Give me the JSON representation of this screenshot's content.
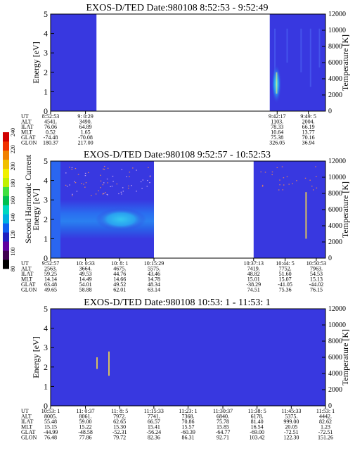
{
  "colors": {
    "background_fill": "#3838e0",
    "panel_gap": "#ffffff",
    "enhanced": "#2a70f0",
    "bright": "#30c8f0",
    "hot": "#f0f070",
    "spike": "#d8c060"
  },
  "colorbar": {
    "label": "Second Harmonic Current",
    "ticks": [
      "80",
      "100",
      "120",
      "140",
      "160",
      "180",
      "200",
      "220",
      "240"
    ],
    "colors": [
      "#000000",
      "#400050",
      "#6000a0",
      "#2020c0",
      "#1060f0",
      "#00b0e0",
      "#00d8c0",
      "#00c050",
      "#40e040",
      "#c0f000",
      "#f0f000",
      "#f0c000",
      "#f08000",
      "#f03000",
      "#d00000"
    ]
  },
  "chart_data": [
    {
      "type": "heatmap",
      "title": "EXOS-D/TED   Date:980108  8:52:53 - 9:52:49",
      "ylabel": "Energy [eV]",
      "y2label": "Temperature [K]",
      "ylim": [
        0,
        5
      ],
      "y2lim": [
        0,
        12000
      ],
      "yticks": [
        "0",
        "1",
        "2",
        "3",
        "4",
        "5"
      ],
      "y2ticks": [
        "0",
        "2000",
        "4000",
        "6000",
        "8000",
        "10000",
        "12000"
      ],
      "time_range": [
        "8:52:53",
        "9:52:49"
      ],
      "data_intervals": [
        [
          "8:52:53",
          "9:02:53"
        ],
        [
          "9:40:40",
          "9:52:49"
        ]
      ],
      "table": {
        "row_labels": [
          "UT",
          "ALT",
          "ILAT",
          "MLT",
          "GLAT",
          "GLON"
        ],
        "columns": [
          {
            "values": [
              "8:52:53",
              "4541.",
              "76.06",
              "0.52",
              "-74.48",
              "180.37"
            ]
          },
          {
            "values": [
              "9: 0:29",
              "3490.",
              "64.89",
              "1.65",
              "-70.08",
              "217.00"
            ]
          },
          {
            "values": [
              "9:42:17",
              "1103.",
              "78.33",
              "10.64",
              "75.38",
              "326.05"
            ]
          },
          {
            "values": [
              "9:49: 5",
              "2004.",
              "66.19",
              "13.77",
              "70.16",
              "36.94"
            ]
          }
        ]
      }
    },
    {
      "type": "heatmap",
      "title": "EXOS-D/TED   Date:980108  9:52:57 - 10:52:53",
      "ylabel": "Energy [eV]",
      "y2label": "Temperature [K]",
      "ylim": [
        0,
        5
      ],
      "y2lim": [
        0,
        12000
      ],
      "yticks": [
        "0",
        "1",
        "2",
        "3",
        "4",
        "5"
      ],
      "y2ticks": [
        "0",
        "2000",
        "4000",
        "6000",
        "8000",
        "10000",
        "12000"
      ],
      "time_range": [
        "9:52:57",
        "10:52:53"
      ],
      "data_intervals": [
        [
          "9:52:57",
          "10:15:29"
        ],
        [
          "10:37:13",
          "10:52:53"
        ]
      ],
      "table": {
        "row_labels": [
          "UT",
          "ALT",
          "ILAT",
          "MLT",
          "GLAT",
          "GLON"
        ],
        "columns": [
          {
            "values": [
              "9:52:57",
              "2563.",
              "59.25",
              "14.14",
              "63.48",
              "49.65"
            ]
          },
          {
            "values": [
              "10: 0:33",
              "3664.",
              "49.53",
              "14.49",
              "54.01",
              "58.88"
            ]
          },
          {
            "values": [
              "10: 8: 1",
              "4675.",
              "44.76",
              "14.66",
              "49.52",
              "62.01"
            ]
          },
          {
            "values": [
              "10:15:29",
              "5575.",
              "43.46",
              "14.78",
              "48.34",
              "63.14"
            ]
          },
          {
            "values": [
              "10:37:13",
              "7419.",
              "48.82",
              "15.01",
              "-38.29",
              "74.51"
            ]
          },
          {
            "values": [
              "10:44: 5",
              "7752.",
              "51.60",
              "15.07",
              "-41.05",
              "75.36"
            ]
          },
          {
            "values": [
              "10:50:53",
              "7963.",
              "54.53",
              "15.13",
              "-44.02",
              "76.15"
            ]
          }
        ]
      }
    },
    {
      "type": "heatmap",
      "title": "EXOS-D/TED   Date:980108  10:53: 1 - 11:53: 1",
      "ylabel": "Energy [eV]",
      "y2label": "Temperature [K]",
      "ylim": [
        0,
        5
      ],
      "y2lim": [
        0,
        12000
      ],
      "yticks": [
        "0",
        "1",
        "2",
        "3",
        "4",
        "5"
      ],
      "y2ticks": [
        "0",
        "2000",
        "4000",
        "6000",
        "8000",
        "10000",
        "12000"
      ],
      "time_range": [
        "10:53: 1",
        "11:53: 1"
      ],
      "data_intervals": [
        [
          "10:53: 1",
          "11:53: 1"
        ]
      ],
      "table": {
        "row_labels": [
          "UT",
          "ALT",
          "ILAT",
          "MLT",
          "GLAT",
          "GLON"
        ],
        "columns": [
          {
            "values": [
              "10:53: 1",
              "8005.",
              "55.48",
              "15.15",
              "-44.99",
              "76.48"
            ]
          },
          {
            "values": [
              "11: 0:37",
              "8061.",
              "59.00",
              "15.22",
              "-48.58",
              "77.86"
            ]
          },
          {
            "values": [
              "11: 8: 5",
              "7972.",
              "62.65",
              "15.30",
              "-52.31",
              "79.72"
            ]
          },
          {
            "values": [
              "11:15:33",
              "7741.",
              "66.57",
              "15.41",
              "-56.24",
              "82.36"
            ]
          },
          {
            "values": [
              "11:23: 1",
              "7368.",
              "70.86",
              "15.57",
              "-60.39",
              "86.31"
            ]
          },
          {
            "values": [
              "11:30:37",
              "6840.",
              "75.78",
              "15.85",
              "-64.77",
              "92.71"
            ]
          },
          {
            "values": [
              "11:38: 5",
              "6178.",
              "81.40",
              "16.54",
              "-69.00",
              "103.42"
            ]
          },
          {
            "values": [
              "11:45:33",
              "5375.",
              "999.00",
              "20.05",
              "-72.51",
              "122.30"
            ]
          },
          {
            "values": [
              "11:53: 1",
              "4442.",
              "82.62",
              "1.23",
              "-72.51",
              "151.26"
            ]
          }
        ]
      }
    }
  ]
}
